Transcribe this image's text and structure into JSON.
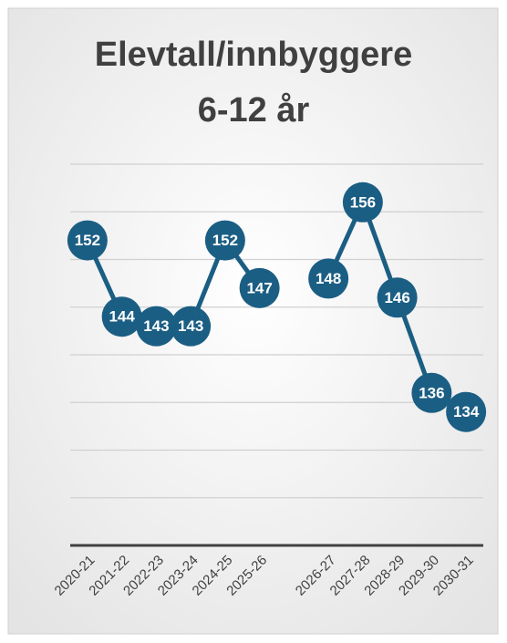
{
  "chart_data": {
    "type": "line",
    "title": [
      "Elevtall/innbyggere",
      "6-12 år"
    ],
    "categories": [
      "2020-21",
      "2021-22",
      "2022-23",
      "2023-24",
      "2024-25",
      "2025-26",
      null,
      "2026-27",
      "2027-28",
      "2028-29",
      "2029-30",
      "2030-31"
    ],
    "series": [
      {
        "color": "#1b5e84",
        "values": [
          152,
          144,
          143,
          143,
          152,
          147,
          null,
          148,
          156,
          146,
          136,
          134
        ]
      }
    ],
    "ylim": [
      120,
      160
    ],
    "yticks": [
      120,
      125,
      130,
      135,
      140,
      145,
      150,
      155,
      160
    ],
    "grid": true
  }
}
